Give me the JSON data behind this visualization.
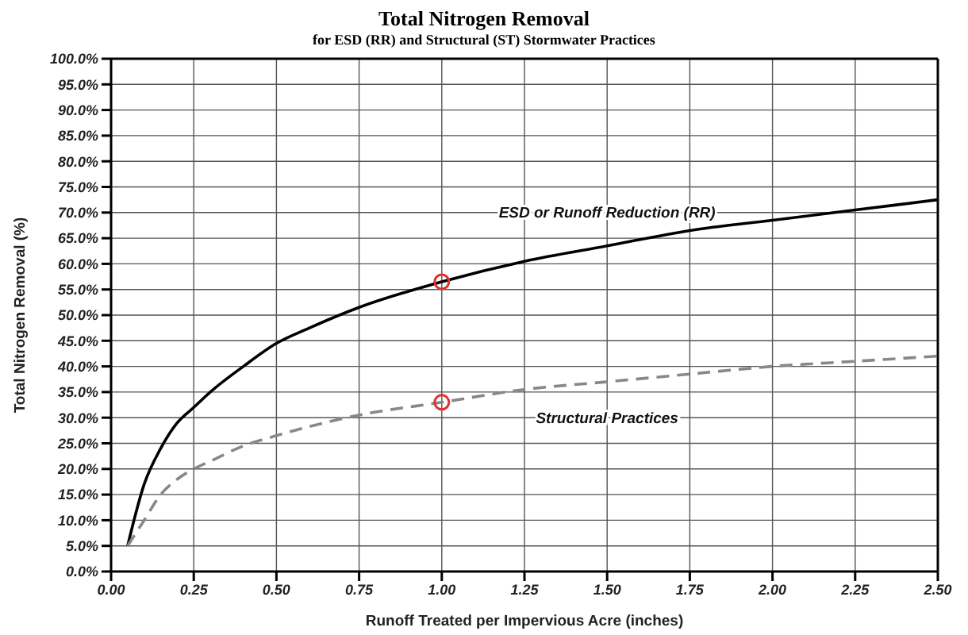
{
  "chart_data": {
    "type": "line",
    "title": "Total Nitrogen Removal",
    "subtitle": "for ESD (RR) and Structural (ST) Stormwater Practices",
    "xlabel": "Runoff Treated per Impervious Acre (inches)",
    "ylabel": "Total Nitrogen Removal (%)",
    "xlim": [
      0,
      2.5
    ],
    "ylim": [
      0,
      100
    ],
    "xticks": [
      {
        "value": 0,
        "label": "0.00"
      },
      {
        "value": 0.25,
        "label": "0.25"
      },
      {
        "value": 0.5,
        "label": "0.50"
      },
      {
        "value": 0.75,
        "label": "0.75"
      },
      {
        "value": 1,
        "label": "1.00"
      },
      {
        "value": 1.25,
        "label": "1.25"
      },
      {
        "value": 1.5,
        "label": "1.50"
      },
      {
        "value": 1.75,
        "label": "1.75"
      },
      {
        "value": 2,
        "label": "2.00"
      },
      {
        "value": 2.25,
        "label": "2.25"
      },
      {
        "value": 2.5,
        "label": "2.50"
      }
    ],
    "yticks": [
      {
        "value": 0,
        "label": "0.0%"
      },
      {
        "value": 5,
        "label": "5.0%"
      },
      {
        "value": 10,
        "label": "10.0%"
      },
      {
        "value": 15,
        "label": "15.0%"
      },
      {
        "value": 20,
        "label": "20.0%"
      },
      {
        "value": 25,
        "label": "25.0%"
      },
      {
        "value": 30,
        "label": "30.0%"
      },
      {
        "value": 35,
        "label": "35.0%"
      },
      {
        "value": 40,
        "label": "40.0%"
      },
      {
        "value": 45,
        "label": "45.0%"
      },
      {
        "value": 50,
        "label": "50.0%"
      },
      {
        "value": 55,
        "label": "55.0%"
      },
      {
        "value": 60,
        "label": "60.0%"
      },
      {
        "value": 65,
        "label": "65.0%"
      },
      {
        "value": 70,
        "label": "70.0%"
      },
      {
        "value": 75,
        "label": "75.0%"
      },
      {
        "value": 80,
        "label": "80.0%"
      },
      {
        "value": 85,
        "label": "85.0%"
      },
      {
        "value": 90,
        "label": "90.0%"
      },
      {
        "value": 95,
        "label": "95.0%"
      },
      {
        "value": 100,
        "label": "100.0%"
      }
    ],
    "grid": true,
    "marker": "none",
    "series": [
      {
        "name": "ESD or Runoff Reduction (RR)",
        "color": "#000000",
        "line_style": "solid",
        "x": [
          0.05,
          0.1,
          0.15,
          0.2,
          0.25,
          0.3,
          0.4,
          0.5,
          0.6,
          0.75,
          1,
          1.25,
          1.5,
          1.75,
          2,
          2.25,
          2.5
        ],
        "values": [
          5,
          17,
          24,
          29,
          32,
          35,
          40,
          44.5,
          47.5,
          51.5,
          56.5,
          60.5,
          63.5,
          66.5,
          68.5,
          70.5,
          72.5
        ]
      },
      {
        "name": "Structural Practices",
        "color": "#888888",
        "line_style": "dashed",
        "x": [
          0.05,
          0.1,
          0.15,
          0.2,
          0.25,
          0.3,
          0.4,
          0.5,
          0.75,
          1,
          1.25,
          1.5,
          1.75,
          2,
          2.25,
          2.5
        ],
        "values": [
          5,
          10,
          15,
          18,
          20,
          21.5,
          24.5,
          26.5,
          30.5,
          33,
          35.5,
          37,
          38.5,
          40,
          41,
          42
        ]
      },
      {
        "type": "scatter",
        "color": "#e03030",
        "marker": "circle",
        "x": [
          1,
          1
        ],
        "values": [
          56.5,
          33
        ]
      }
    ]
  }
}
